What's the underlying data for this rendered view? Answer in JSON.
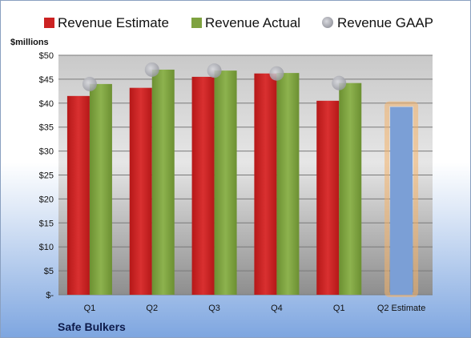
{
  "chart_data": {
    "type": "bar",
    "categories": [
      "Q1",
      "Q2",
      "Q3",
      "Q4",
      "Q1",
      "Q2 Estimate"
    ],
    "series": [
      {
        "name": "Revenue Estimate",
        "values": [
          41.5,
          43.2,
          45.5,
          46.2,
          40.5,
          null
        ],
        "color": "#cc2222"
      },
      {
        "name": "Revenue Actual",
        "values": [
          44.0,
          47.0,
          46.8,
          46.3,
          44.2,
          null
        ],
        "color": "#7ea23f"
      },
      {
        "name": "Revenue GAAP",
        "values": [
          44.0,
          47.0,
          46.8,
          46.2,
          44.2,
          null
        ],
        "color": "#a9aab2"
      }
    ],
    "forecast": {
      "category_index": 5,
      "value": 39.2,
      "color": "#7b9fd6",
      "glow": "#f4b26a"
    },
    "ylim": [
      0,
      50
    ],
    "yticks": [
      {
        "value": 0,
        "label": "$-"
      },
      {
        "value": 5,
        "label": "$5"
      },
      {
        "value": 10,
        "label": "$10"
      },
      {
        "value": 15,
        "label": "$15"
      },
      {
        "value": 20,
        "label": "$20"
      },
      {
        "value": 25,
        "label": "$25"
      },
      {
        "value": 30,
        "label": "$30"
      },
      {
        "value": 35,
        "label": "$35"
      },
      {
        "value": 40,
        "label": "$40"
      },
      {
        "value": 45,
        "label": "$45"
      },
      {
        "value": 50,
        "label": "$50"
      }
    ],
    "y_unit_label": "$millions",
    "legend_position": "top",
    "grid": true
  },
  "company": "Safe Bulkers"
}
